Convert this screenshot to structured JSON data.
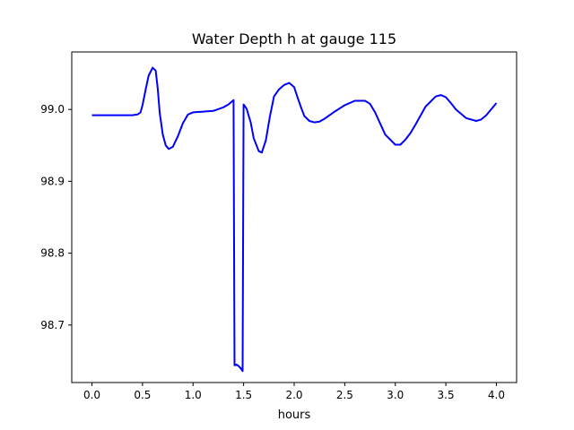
{
  "chart_data": {
    "type": "line",
    "title": "Water Depth h at gauge 115",
    "xlabel": "hours",
    "ylabel": "",
    "xlim": [
      -0.2,
      4.2
    ],
    "ylim": [
      98.62,
      99.08
    ],
    "grid": false,
    "xticks": [
      0.0,
      0.5,
      1.0,
      1.5,
      2.0,
      2.5,
      3.0,
      3.5,
      4.0
    ],
    "xtick_labels": [
      "0.0",
      "0.5",
      "1.0",
      "1.5",
      "2.0",
      "2.5",
      "3.0",
      "3.5",
      "4.0"
    ],
    "yticks": [
      98.7,
      98.8,
      98.9,
      99.0
    ],
    "ytick_labels": [
      "98.7",
      "98.8",
      "98.9",
      "99.0"
    ],
    "series": [
      {
        "color": "#0000ff",
        "x": [
          0.0,
          0.1,
          0.2,
          0.3,
          0.4,
          0.45,
          0.48,
          0.5,
          0.53,
          0.56,
          0.6,
          0.63,
          0.65,
          0.67,
          0.7,
          0.73,
          0.76,
          0.8,
          0.85,
          0.9,
          0.95,
          1.0,
          1.1,
          1.2,
          1.3,
          1.35,
          1.4,
          1.405,
          1.41,
          1.43,
          1.45,
          1.47,
          1.49,
          1.5,
          1.53,
          1.57,
          1.6,
          1.65,
          1.68,
          1.72,
          1.76,
          1.8,
          1.85,
          1.9,
          1.95,
          2.0,
          2.03,
          2.07,
          2.1,
          2.15,
          2.2,
          2.25,
          2.3,
          2.4,
          2.5,
          2.6,
          2.7,
          2.75,
          2.8,
          2.9,
          3.0,
          3.05,
          3.1,
          3.15,
          3.2,
          3.3,
          3.4,
          3.45,
          3.5,
          3.55,
          3.6,
          3.7,
          3.8,
          3.85,
          3.9,
          4.0
        ],
        "y": [
          98.992,
          98.992,
          98.992,
          98.992,
          98.992,
          98.993,
          98.996,
          99.006,
          99.027,
          99.047,
          99.058,
          99.054,
          99.03,
          98.995,
          98.965,
          98.95,
          98.945,
          98.948,
          98.963,
          98.981,
          98.993,
          98.996,
          98.997,
          98.998,
          99.003,
          99.007,
          99.013,
          98.84,
          98.644,
          98.645,
          98.643,
          98.64,
          98.636,
          99.007,
          99.001,
          98.982,
          98.96,
          98.942,
          98.94,
          98.957,
          98.99,
          99.018,
          99.028,
          99.034,
          99.037,
          99.031,
          99.018,
          99.002,
          98.991,
          98.984,
          98.982,
          98.983,
          98.987,
          98.997,
          99.006,
          99.012,
          99.012,
          99.008,
          98.996,
          98.965,
          98.951,
          98.951,
          98.958,
          98.967,
          98.979,
          99.004,
          99.018,
          99.02,
          99.017,
          99.009,
          99.0,
          98.988,
          98.984,
          98.986,
          98.992,
          99.009
        ]
      }
    ]
  }
}
